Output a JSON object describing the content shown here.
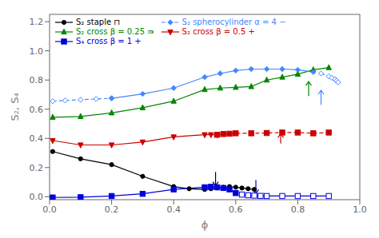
{
  "chart_data": {
    "type": "line",
    "xlabel": "ϕ",
    "ylabel": "S₂, S₄",
    "xlim": [
      0.0,
      1.0
    ],
    "ylim": [
      -0.02,
      1.25
    ],
    "xticks": [
      {
        "value": 0.0,
        "label": "0.0"
      },
      0.2,
      0.4,
      0.6,
      0.8,
      {
        "value": 1.0,
        "label": "1.0"
      }
    ],
    "yticks": [
      {
        "value": 0.0,
        "label": "0.0"
      },
      0.2,
      0.4,
      0.6,
      0.8,
      {
        "value": 1.0,
        "label": "1.0"
      },
      1.2
    ],
    "grid": false,
    "legend": "upper left",
    "series": [
      {
        "name": "S₂ staple ⊓",
        "color": "#000000",
        "marker": "circle",
        "line_style": "solid",
        "segments": [
          {
            "x": [
              0.01,
              0.1,
              0.2,
              0.3,
              0.4,
              0.45,
              0.5,
              0.52,
              0.54,
              0.56,
              0.58,
              0.6,
              0.62,
              0.64,
              0.66
            ],
            "values": [
              0.31,
              0.26,
              0.22,
              0.14,
              0.07,
              0.055,
              0.05,
              0.055,
              0.06,
              0.065,
              0.07,
              0.065,
              0.06,
              0.055,
              0.05
            ],
            "line_style": "solid",
            "marker": "circle"
          }
        ]
      },
      {
        "name": "S₂ cross β = 0.25 ⇛",
        "color": "#008800",
        "marker": "triangle_up",
        "line_style": "solid",
        "segments": [
          {
            "x": [
              0.01,
              0.1,
              0.2,
              0.3,
              0.4,
              0.5,
              0.55,
              0.6,
              0.65,
              0.7,
              0.75,
              0.8,
              0.85,
              0.9
            ],
            "values": [
              0.545,
              0.55,
              0.575,
              0.61,
              0.655,
              0.735,
              0.745,
              0.75,
              0.755,
              0.8,
              0.82,
              0.84,
              0.87,
              0.885
            ],
            "line_style": "solid",
            "marker": "triangle_up"
          }
        ]
      },
      {
        "name": "S₄ cross β = 1 +",
        "color": "#0000dd",
        "marker": "square",
        "line_style": "solid",
        "segments": [
          {
            "x": [
              0.01,
              0.1,
              0.2,
              0.3,
              0.4,
              0.5,
              0.52,
              0.54,
              0.56,
              0.58,
              0.6
            ],
            "values": [
              -0.005,
              -0.003,
              0.005,
              0.02,
              0.05,
              0.065,
              0.068,
              0.065,
              0.06,
              0.05,
              0.025
            ],
            "line_style": "solid",
            "marker": "square"
          },
          {
            "x": [
              0.62,
              0.64,
              0.66,
              0.68,
              0.7,
              0.75,
              0.8,
              0.85,
              0.9
            ],
            "values": [
              0.015,
              0.01,
              0.008,
              0.006,
              0.005,
              0.005,
              0.005,
              0.005,
              0.005
            ],
            "line_style": "solid",
            "marker": "square_open"
          }
        ]
      },
      {
        "name": "S₂ spherocylinder α = 4 −",
        "color": "#4488ff",
        "marker": "diamond",
        "line_style": "dashed",
        "segments": [
          {
            "x": [
              0.01,
              0.05,
              0.1,
              0.15,
              0.2
            ],
            "values": [
              0.655,
              0.66,
              0.665,
              0.67,
              0.675
            ],
            "line_style": "dashed",
            "marker": "diamond_open"
          },
          {
            "x": [
              0.2,
              0.3,
              0.4,
              0.5,
              0.55,
              0.6,
              0.65,
              0.7,
              0.75,
              0.8,
              0.85
            ],
            "values": [
              0.675,
              0.705,
              0.745,
              0.82,
              0.845,
              0.865,
              0.875,
              0.875,
              0.875,
              0.87,
              0.855
            ],
            "line_style": "solid",
            "marker": "diamond"
          },
          {
            "x": [
              0.875,
              0.9,
              0.91,
              0.92,
              0.925,
              0.93
            ],
            "values": [
              0.845,
              0.825,
              0.815,
              0.805,
              0.795,
              0.785
            ],
            "line_style": "dashed",
            "marker": "diamond_open"
          }
        ]
      },
      {
        "name": "S₂ cross β = 0.5 +",
        "color": "#cc0000",
        "marker": "triangle_down",
        "line_style": "solid",
        "segments": [
          {
            "x": [
              0.01,
              0.1,
              0.2,
              0.3,
              0.4,
              0.5,
              0.52,
              0.54
            ],
            "values": [
              0.385,
              0.355,
              0.355,
              0.375,
              0.41,
              0.425,
              0.425,
              0.425
            ],
            "line_style": "solid",
            "marker": "triangle_down"
          },
          {
            "x": [
              0.54,
              0.56,
              0.58,
              0.6,
              0.65,
              0.7,
              0.75,
              0.8,
              0.85,
              0.9
            ],
            "values": [
              0.425,
              0.43,
              0.432,
              0.435,
              0.435,
              0.437,
              0.44,
              0.44,
              0.435,
              0.44
            ],
            "line_style": "dashed",
            "marker": "square"
          }
        ]
      }
    ],
    "arrows": [
      {
        "x": 0.535,
        "y_start": 0.17,
        "y_end": 0.075,
        "color": "#000000"
      },
      {
        "x": 0.665,
        "y_start": 0.115,
        "y_end": 0.022,
        "color": "#0000dd"
      },
      {
        "x": 0.745,
        "y_start": 0.365,
        "y_end": 0.432,
        "color": "#cc0000"
      },
      {
        "x": 0.835,
        "y_start": 0.69,
        "y_end": 0.79,
        "color": "#008800"
      },
      {
        "x": 0.875,
        "y_start": 0.63,
        "y_end": 0.73,
        "color": "#4488ff"
      }
    ]
  }
}
